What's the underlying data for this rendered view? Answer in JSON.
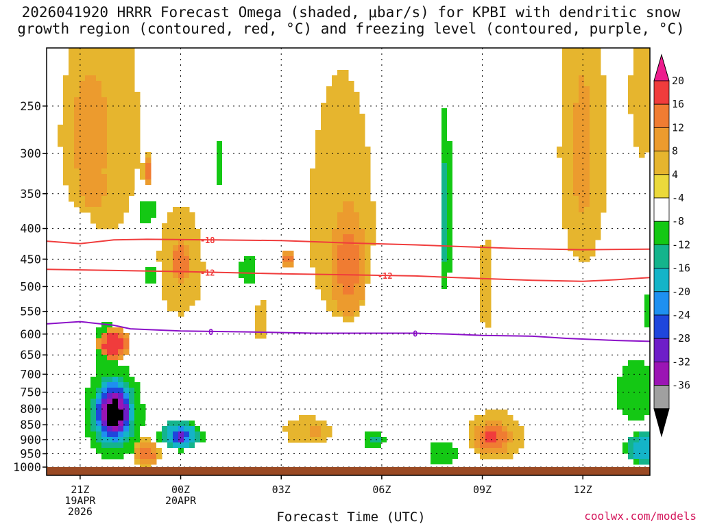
{
  "chart_data": {
    "type": "heatmap",
    "title_line1": "2026041920 HRRR Forecast Omega (shaded, μbar/s) for KPBI with dendritic snow",
    "title_line2": "growth region (contoured, red, °C) and freezing level (contoured, purple, °C)",
    "xlabel": "Forecast Time (UTC)",
    "ylabel": "",
    "watermark": "coolwx.com/models",
    "y_axis": {
      "type": "pressure-log",
      "units": "hPa",
      "range": [
        1000,
        200
      ],
      "ticks": [
        250,
        300,
        350,
        400,
        450,
        500,
        550,
        600,
        650,
        700,
        750,
        800,
        850,
        900,
        950,
        1000
      ]
    },
    "x_axis": {
      "range_hours": [
        -1,
        17
      ],
      "ticks": [
        {
          "hour": 0,
          "label": "21Z",
          "sub1": "19APR",
          "sub2": "2026"
        },
        {
          "hour": 3,
          "label": "00Z",
          "sub1": "20APR",
          "sub2": ""
        },
        {
          "hour": 6,
          "label": "03Z",
          "sub1": "",
          "sub2": ""
        },
        {
          "hour": 9,
          "label": "06Z",
          "sub1": "",
          "sub2": ""
        },
        {
          "hour": 12,
          "label": "09Z",
          "sub1": "",
          "sub2": ""
        },
        {
          "hour": 15,
          "label": "12Z",
          "sub1": "",
          "sub2": ""
        }
      ]
    },
    "colorbar": {
      "labels": [
        "20",
        "16",
        "12",
        "8",
        "4",
        "-4",
        "-8",
        "-12",
        "-16",
        "-20",
        "-24",
        "-28",
        "-32",
        "-36"
      ],
      "colors": [
        "#ed1c8d",
        "#f03c3c",
        "#f07c32",
        "#ec9b2e",
        "#e6b52e",
        "#ebd93b",
        "#ffffff",
        "#14c814",
        "#14b48c",
        "#14b4c8",
        "#1e90f0",
        "#1e46dc",
        "#6e1ec8",
        "#9b14b4",
        "#a0a0a0",
        "#000000"
      ]
    },
    "contours": [
      {
        "name": "dgz-top",
        "label": "-18",
        "color": "#f03c3c",
        "points": [
          [
            -1,
            420
          ],
          [
            0,
            424
          ],
          [
            1,
            418
          ],
          [
            2,
            417
          ],
          [
            4,
            418
          ],
          [
            6,
            419
          ],
          [
            8,
            423
          ],
          [
            10,
            426
          ],
          [
            11.5,
            429
          ],
          [
            13,
            432
          ],
          [
            15,
            434
          ],
          [
            17,
            433
          ]
        ],
        "label_hours": [
          3.8
        ]
      },
      {
        "name": "dgz-bottom",
        "label": "-12",
        "color": "#f03c3c",
        "points": [
          [
            -1,
            468
          ],
          [
            1,
            470
          ],
          [
            3,
            472
          ],
          [
            4.5,
            474
          ],
          [
            6,
            476
          ],
          [
            8,
            478
          ],
          [
            10,
            480
          ],
          [
            12,
            485
          ],
          [
            13.5,
            488
          ],
          [
            15,
            490
          ],
          [
            16,
            487
          ],
          [
            17,
            483
          ]
        ],
        "label_hours": [
          3.8,
          9.1
        ]
      },
      {
        "name": "freezing-level",
        "label": "0",
        "color": "#8b10c8",
        "points": [
          [
            -1,
            577
          ],
          [
            0,
            572
          ],
          [
            1,
            580
          ],
          [
            1.5,
            588
          ],
          [
            3,
            593
          ],
          [
            5,
            595
          ],
          [
            7,
            598
          ],
          [
            9,
            598
          ],
          [
            10,
            598
          ],
          [
            11,
            600
          ],
          [
            12,
            603
          ],
          [
            13.5,
            605
          ],
          [
            14.5,
            610
          ],
          [
            16,
            615
          ],
          [
            17,
            617
          ]
        ],
        "label_hours": [
          3.9,
          10.0
        ]
      }
    ],
    "features": [
      {
        "h": 0.8,
        "p": 280,
        "rh": 1.0,
        "rp": 130,
        "v": 8
      },
      {
        "h": 0.3,
        "p": 280,
        "rh": 0.9,
        "rp": 100,
        "v": 10
      },
      {
        "h": 0.4,
        "p": 340,
        "rh": 0.5,
        "rp": 35,
        "v": 12
      },
      {
        "h": 2.0,
        "p": 320,
        "rh": 0.15,
        "rp": 20,
        "v": 14
      },
      {
        "h": 3.0,
        "p": 460,
        "rh": 0.7,
        "rp": 100,
        "v": 8
      },
      {
        "h": 3.0,
        "p": 455,
        "rh": 0.3,
        "rp": 40,
        "v": 16
      },
      {
        "h": 4.2,
        "p": 300,
        "rh": 0.5,
        "rp": 130,
        "v": -8
      },
      {
        "h": 4.2,
        "p": 310,
        "rh": 0.1,
        "rp": 40,
        "v": -12
      },
      {
        "h": 7.8,
        "p": 390,
        "rh": 1.0,
        "rp": 180,
        "v": 8
      },
      {
        "h": 8.0,
        "p": 460,
        "rh": 0.6,
        "rp": 110,
        "v": 14
      },
      {
        "h": 6.2,
        "p": 450,
        "rh": 0.12,
        "rp": 18,
        "v": 18
      },
      {
        "h": 8.8,
        "p": 300,
        "rh": 0.5,
        "rp": 35,
        "v": 4
      },
      {
        "h": 10.9,
        "p": 380,
        "rh": 0.45,
        "rp": 200,
        "v": -8
      },
      {
        "h": 10.9,
        "p": 380,
        "rh": 0.2,
        "rp": 150,
        "v": -14
      },
      {
        "h": 10.9,
        "p": 420,
        "rh": 0.06,
        "rp": 40,
        "v": -18
      },
      {
        "h": 12.1,
        "p": 500,
        "rh": 0.2,
        "rp": 100,
        "v": 7
      },
      {
        "h": 15.0,
        "p": 300,
        "rh": 0.9,
        "rp": 200,
        "v": 6
      },
      {
        "h": 15.0,
        "p": 300,
        "rh": 0.4,
        "rp": 110,
        "v": 11
      },
      {
        "h": 16.8,
        "p": 240,
        "rh": 0.5,
        "rp": 80,
        "v": 6
      },
      {
        "h": 0.8,
        "p": 640,
        "rh": 0.65,
        "rp": 120,
        "v": -10
      },
      {
        "h": 1.0,
        "p": 625,
        "rh": 0.5,
        "rp": 40,
        "v": 20
      },
      {
        "h": 1.0,
        "p": 820,
        "rh": 0.9,
        "rp": 150,
        "v": -18
      },
      {
        "h": 1.0,
        "p": 815,
        "rh": 0.6,
        "rp": 110,
        "v": -30
      },
      {
        "h": 1.0,
        "p": 812,
        "rh": 0.55,
        "rp": 90,
        "v": -40
      },
      {
        "h": 2.0,
        "p": 950,
        "rh": 0.4,
        "rp": 55,
        "v": 14
      },
      {
        "h": 3.0,
        "p": 885,
        "rh": 1.2,
        "rp": 75,
        "v": -10
      },
      {
        "h": 3.0,
        "p": 885,
        "rh": 0.6,
        "rp": 55,
        "v": -22
      },
      {
        "h": 3.0,
        "p": 890,
        "rh": 0.3,
        "rp": 25,
        "v": -32
      },
      {
        "h": 2.0,
        "p": 375,
        "rh": 0.6,
        "rp": 35,
        "v": -9
      },
      {
        "h": 2.1,
        "p": 480,
        "rh": 0.35,
        "rp": 45,
        "v": -9
      },
      {
        "h": 5.0,
        "p": 470,
        "rh": 0.5,
        "rp": 60,
        "v": -9
      },
      {
        "h": 5.4,
        "p": 570,
        "rh": 0.2,
        "rp": 60,
        "v": 6
      },
      {
        "h": 3.4,
        "p": 670,
        "rh": 0.15,
        "rp": 40,
        "v": -8
      },
      {
        "h": 6.8,
        "p": 870,
        "rh": 0.9,
        "rp": 60,
        "v": 6
      },
      {
        "h": 7.0,
        "p": 870,
        "rh": 0.3,
        "rp": 30,
        "v": 10
      },
      {
        "h": 8.8,
        "p": 900,
        "rh": 0.7,
        "rp": 75,
        "v": -9
      },
      {
        "h": 8.8,
        "p": 900,
        "rh": 0.2,
        "rp": 25,
        "v": -14
      },
      {
        "h": 9.5,
        "p": 720,
        "rh": 0.7,
        "rp": 35,
        "v": -8
      },
      {
        "h": 10.8,
        "p": 950,
        "rh": 0.7,
        "rp": 70,
        "v": -10
      },
      {
        "h": 12.0,
        "p": 720,
        "rh": 0.3,
        "rp": 40,
        "v": -8
      },
      {
        "h": 12.4,
        "p": 890,
        "rh": 1.1,
        "rp": 110,
        "v": 6
      },
      {
        "h": 12.3,
        "p": 895,
        "rh": 0.6,
        "rp": 60,
        "v": 16
      },
      {
        "h": 12.3,
        "p": 895,
        "rh": 0.35,
        "rp": 40,
        "v": 19
      },
      {
        "h": 14.0,
        "p": 830,
        "rh": 0.15,
        "rp": 35,
        "v": -8
      },
      {
        "h": 15.4,
        "p": 860,
        "rh": 0.4,
        "rp": 20,
        "v": 4
      },
      {
        "h": 16.6,
        "p": 750,
        "rh": 1.0,
        "rp": 150,
        "v": -10
      },
      {
        "h": 16.8,
        "p": 930,
        "rh": 0.6,
        "rp": 60,
        "v": -20
      },
      {
        "h": 17.0,
        "p": 550,
        "rh": 0.5,
        "rp": 80,
        "v": -9
      }
    ]
  }
}
